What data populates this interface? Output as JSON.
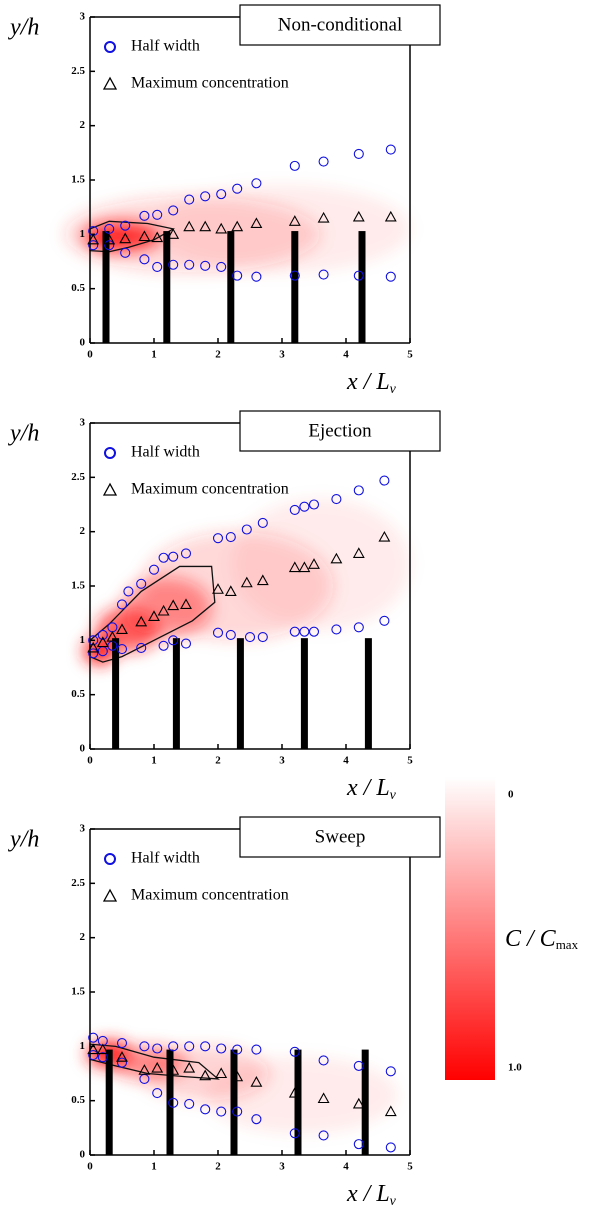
{
  "chart_data": [
    {
      "type": "scatter",
      "title": "Non-conditional",
      "x_label": "x / L",
      "x_label_sub": "v",
      "y_label": "y/h",
      "xlim": [
        0,
        5
      ],
      "ylim": [
        0,
        3
      ],
      "xticks": [
        0,
        1,
        2,
        3,
        4,
        5
      ],
      "yticks": [
        0,
        0.5,
        1,
        1.5,
        2,
        2.5,
        3
      ],
      "series": [
        {
          "name": "Half width",
          "color": "#1010e0",
          "marker": "circle",
          "x": [
            0.05,
            0.3,
            0.55,
            0.85,
            1.05,
            1.3,
            1.55,
            1.8,
            2.05,
            2.3,
            2.6,
            3.2,
            3.65,
            4.2,
            4.7,
            0.05,
            0.3,
            0.55,
            0.85,
            1.05,
            1.3,
            1.55,
            1.8,
            2.05,
            2.3,
            2.6,
            3.2,
            3.65,
            4.2,
            4.7
          ],
          "values": [
            1.03,
            1.05,
            1.08,
            1.17,
            1.18,
            1.22,
            1.32,
            1.35,
            1.37,
            1.42,
            1.47,
            1.63,
            1.67,
            1.74,
            1.78,
            0.9,
            0.9,
            0.83,
            0.77,
            0.7,
            0.72,
            0.72,
            0.71,
            0.7,
            0.62,
            0.61,
            0.62,
            0.63,
            0.62,
            0.61
          ]
        },
        {
          "name": "Maximum concentration",
          "color": "#000000",
          "marker": "triangle",
          "x": [
            0.05,
            0.3,
            0.55,
            0.85,
            1.05,
            1.3,
            1.55,
            1.8,
            2.05,
            2.3,
            2.6,
            3.2,
            3.65,
            4.2,
            4.7
          ],
          "values": [
            0.95,
            0.95,
            0.96,
            0.98,
            0.97,
            1.0,
            1.07,
            1.07,
            1.05,
            1.07,
            1.1,
            1.12,
            1.15,
            1.16,
            1.16
          ]
        }
      ]
    },
    {
      "type": "scatter",
      "title": "Ejection",
      "x_label": "x / L",
      "x_label_sub": "v",
      "y_label": "y/h",
      "xlim": [
        0,
        5
      ],
      "ylim": [
        0,
        3
      ],
      "xticks": [
        0,
        1,
        2,
        3,
        4,
        5
      ],
      "yticks": [
        0,
        0.5,
        1,
        1.5,
        2,
        2.5,
        3
      ],
      "series": [
        {
          "name": "Half width",
          "color": "#1010e0",
          "marker": "circle",
          "x": [
            0.05,
            0.2,
            0.35,
            0.5,
            0.6,
            0.8,
            1.0,
            1.15,
            1.3,
            1.5,
            2.0,
            2.2,
            2.45,
            2.7,
            3.2,
            3.35,
            3.5,
            3.85,
            4.2,
            4.6,
            0.05,
            0.2,
            0.35,
            0.5,
            0.8,
            1.15,
            1.3,
            1.5,
            2.0,
            2.2,
            2.5,
            2.7,
            3.2,
            3.35,
            3.5,
            3.85,
            4.2,
            4.6
          ],
          "values": [
            1.0,
            1.05,
            1.12,
            1.33,
            1.45,
            1.52,
            1.65,
            1.76,
            1.77,
            1.8,
            1.94,
            1.95,
            2.02,
            2.08,
            2.2,
            2.23,
            2.25,
            2.3,
            2.38,
            2.47,
            0.88,
            0.9,
            0.95,
            0.92,
            0.93,
            0.95,
            1.0,
            0.97,
            1.07,
            1.05,
            1.03,
            1.03,
            1.08,
            1.08,
            1.08,
            1.1,
            1.12,
            1.18
          ]
        },
        {
          "name": "Maximum concentration",
          "color": "#000000",
          "marker": "triangle",
          "x": [
            0.05,
            0.2,
            0.35,
            0.5,
            0.8,
            1.0,
            1.15,
            1.3,
            1.5,
            2.0,
            2.2,
            2.45,
            2.7,
            3.2,
            3.35,
            3.5,
            3.85,
            4.2,
            4.6
          ],
          "values": [
            0.93,
            0.98,
            1.03,
            1.1,
            1.17,
            1.22,
            1.27,
            1.32,
            1.33,
            1.47,
            1.45,
            1.53,
            1.55,
            1.67,
            1.67,
            1.7,
            1.75,
            1.8,
            1.95
          ]
        }
      ]
    },
    {
      "type": "scatter",
      "title": "Sweep",
      "x_label": "x / L",
      "x_label_sub": "v",
      "y_label": "y/h",
      "xlim": [
        0,
        5
      ],
      "ylim": [
        0,
        3
      ],
      "xticks": [
        0,
        1,
        2,
        3,
        4,
        5
      ],
      "yticks": [
        0,
        0.5,
        1,
        1.5,
        2,
        2.5,
        3
      ],
      "series": [
        {
          "name": "Half width",
          "color": "#1010e0",
          "marker": "circle",
          "x": [
            0.05,
            0.2,
            0.5,
            0.85,
            1.05,
            1.3,
            1.55,
            1.8,
            2.05,
            2.3,
            2.6,
            3.2,
            3.65,
            4.2,
            4.7,
            0.05,
            0.2,
            0.5,
            0.85,
            1.05,
            1.3,
            1.55,
            1.8,
            2.05,
            2.3,
            2.6,
            3.2,
            3.65,
            4.2,
            4.7
          ],
          "values": [
            1.08,
            1.05,
            1.03,
            1.0,
            0.98,
            1.0,
            1.0,
            1.0,
            0.98,
            0.97,
            0.97,
            0.95,
            0.87,
            0.82,
            0.77,
            0.92,
            0.9,
            0.85,
            0.7,
            0.57,
            0.48,
            0.47,
            0.42,
            0.4,
            0.4,
            0.33,
            0.2,
            0.18,
            0.1,
            0.07
          ]
        },
        {
          "name": "Maximum concentration",
          "color": "#000000",
          "marker": "triangle",
          "x": [
            0.05,
            0.2,
            0.5,
            0.85,
            1.05,
            1.3,
            1.55,
            1.8,
            2.05,
            2.3,
            2.6,
            3.2,
            3.65,
            4.2,
            4.7
          ],
          "values": [
            0.97,
            0.97,
            0.9,
            0.78,
            0.8,
            0.78,
            0.8,
            0.73,
            0.75,
            0.72,
            0.67,
            0.57,
            0.52,
            0.47,
            0.4
          ]
        }
      ]
    }
  ],
  "colorbar": {
    "label": "C / C",
    "label_sub": "max",
    "ticks": [
      {
        "value": 0,
        "label": "0"
      },
      {
        "value": 1,
        "label": "1.0"
      }
    ]
  }
}
